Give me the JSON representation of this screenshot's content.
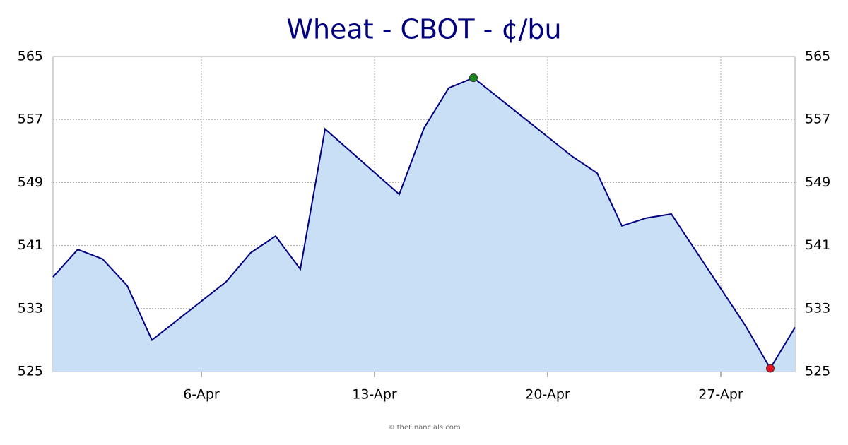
{
  "chart_data": {
    "type": "area",
    "title": "Wheat - CBOT - ¢/bu",
    "x": [
      0,
      1,
      2,
      3,
      4,
      7,
      8,
      9,
      10,
      11,
      14,
      15,
      16,
      17,
      21,
      22,
      23,
      24,
      25,
      28,
      29,
      30
    ],
    "values": [
      537.0,
      540.5,
      539.3,
      535.9,
      529.0,
      536.4,
      540.1,
      542.2,
      538.0,
      555.8,
      547.5,
      555.9,
      561.0,
      562.3,
      552.3,
      550.2,
      543.5,
      544.5,
      545.0,
      530.8,
      525.4,
      530.6
    ],
    "color": "#000080",
    "fill": "#c9dff5",
    "high_color": "#1a8a1a",
    "low_color": "#e8101a",
    "xlim": [
      0,
      30
    ],
    "xticks": [
      {
        "value": 6,
        "label": "6-Apr"
      },
      {
        "value": 13,
        "label": "13-Apr"
      },
      {
        "value": 20,
        "label": "20-Apr"
      },
      {
        "value": 27,
        "label": "27-Apr"
      }
    ],
    "ylim": [
      525,
      565
    ],
    "yticks": [
      525,
      533,
      541,
      549,
      557,
      565
    ],
    "grid": true,
    "footer": "© theFinancials.com"
  }
}
